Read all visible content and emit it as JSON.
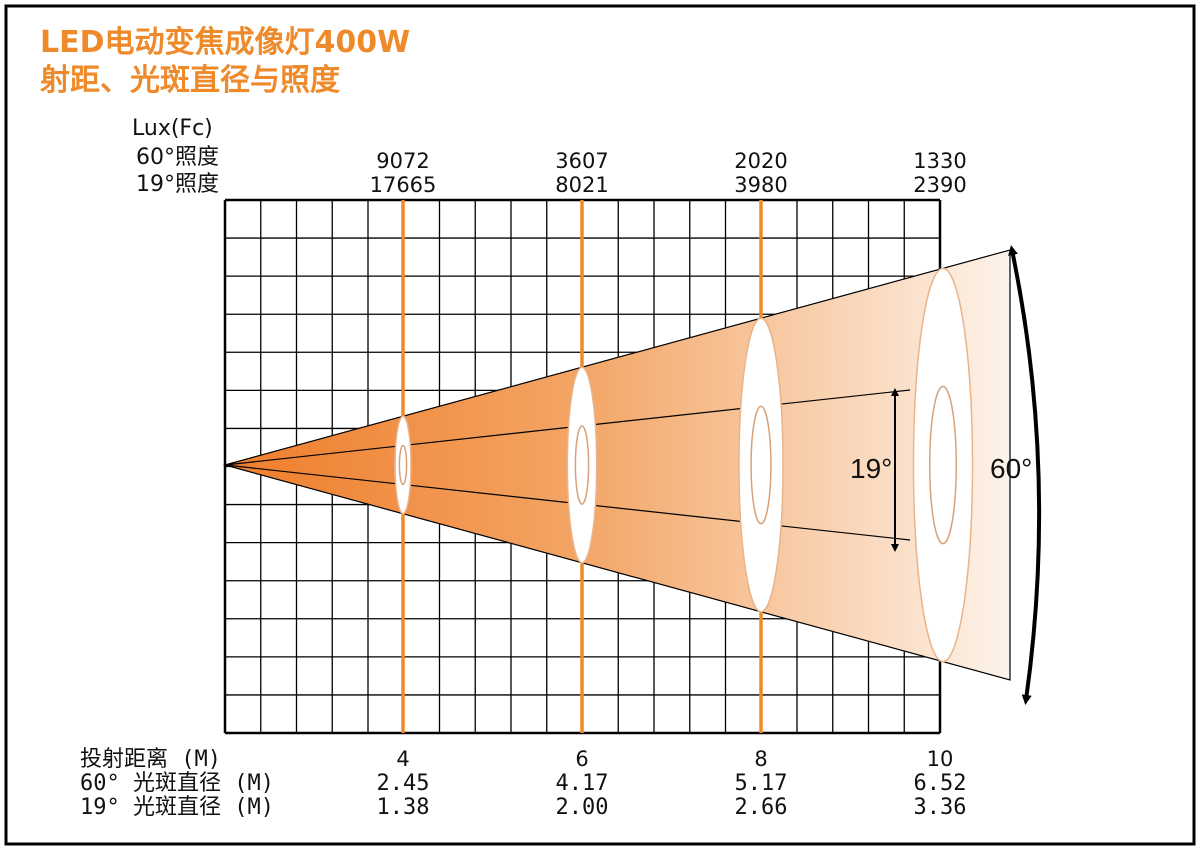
{
  "title_line1": "LED电动变焦成像灯400W",
  "title_line2": "射距、光斑直径与照度",
  "colors": {
    "accent": "#ef8a2b",
    "beam_dark": "#f08a3c",
    "beam_light": "#fdf3ea",
    "frame": "#000000",
    "grid": "#000000"
  },
  "chart_data": {
    "type": "table",
    "ylabel_unit": "Lux(Fc)",
    "row_labels": {
      "lux_60": "60°照度",
      "lux_19": "19°照度",
      "distance": "投射距离 (M)",
      "diameter_60": "60° 光斑直径 (M)",
      "diameter_19": "19° 光斑直径 (M)"
    },
    "distances": [
      4,
      6,
      8,
      10
    ],
    "distance_labels": [
      "4",
      "6",
      "8",
      "10"
    ],
    "lux_60": [
      "9072",
      "3607",
      "2020",
      "1330"
    ],
    "lux_19": [
      "17665",
      "8021",
      "3980",
      "2390"
    ],
    "diameter_60": [
      "2.45",
      "4.17",
      "5.17",
      "6.52"
    ],
    "diameter_19": [
      "1.38",
      "2.00",
      "2.66",
      "3.36"
    ],
    "beam_angles": {
      "wide": "60°",
      "narrow": "19°"
    }
  }
}
